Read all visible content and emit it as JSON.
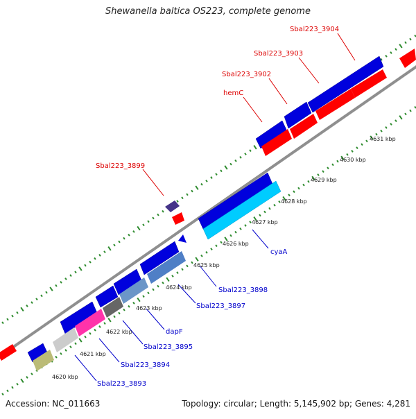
{
  "title": "Shewanella baltica OS223, complete genome",
  "footer": {
    "accession": "Accession: NC_011663",
    "info": "Topology: circular; Length: 5,145,902 bp; Genes: 4,281"
  },
  "colors": {
    "dots": "#2e8b2e",
    "backbone": "#8f8f8f",
    "forward_gene": "#0000dd",
    "reverse_gene": "#ff0000",
    "forward_label": "#0000cc",
    "reverse_label": "#dd0000",
    "tick_label": "#222222"
  },
  "ticks": [
    "4620 kbp",
    "4621 kbp",
    "4622 kbp",
    "4623 kbp",
    "4624 kbp",
    "4625 kbp",
    "4626 kbp",
    "4627 kbp",
    "4628 kbp",
    "4629 kbp",
    "4630 kbp",
    "4631 kbp"
  ],
  "top_labels": [
    "Sbal223_3904",
    "Sbal223_3903",
    "Sbal223_3902",
    "hemC",
    "Sbal223_3899"
  ],
  "bottom_labels": [
    "cyaA",
    "Sbal223_3898",
    "Sbal223_3897",
    "dapF",
    "Sbal223_3895",
    "Sbal223_3894",
    "Sbal223_3893"
  ]
}
